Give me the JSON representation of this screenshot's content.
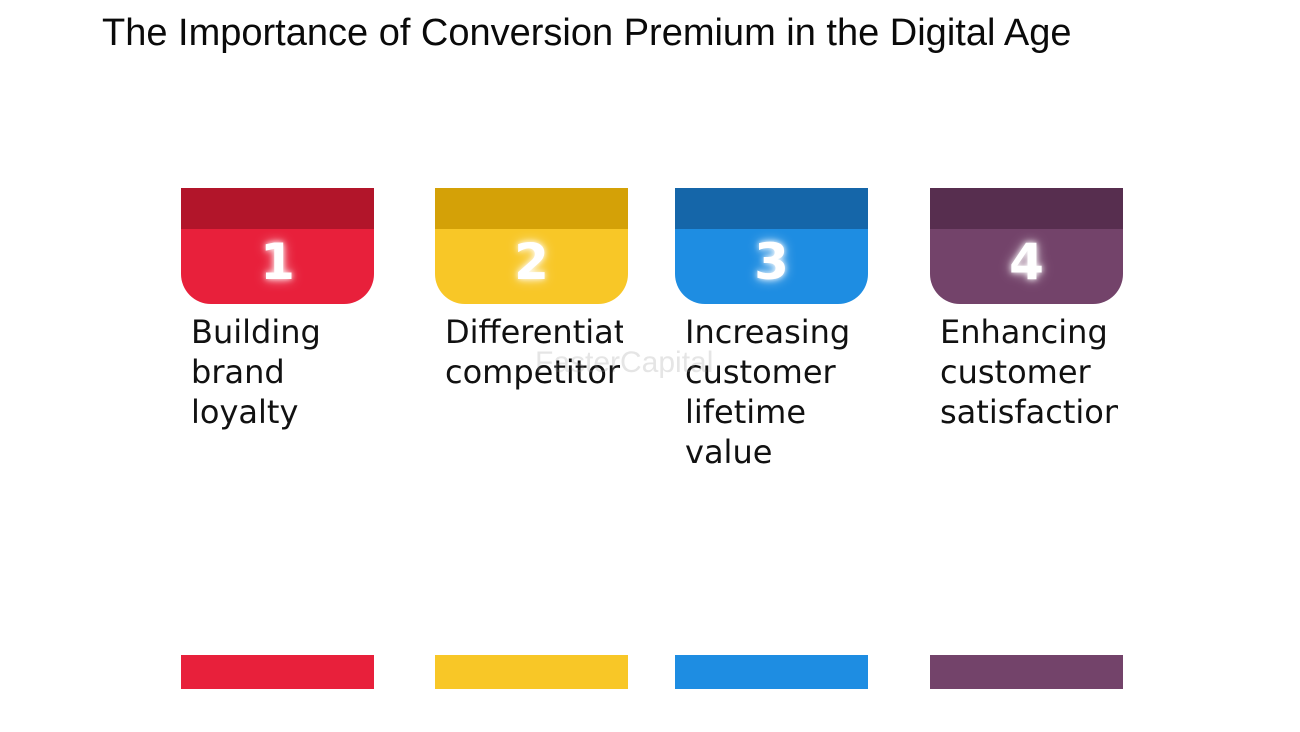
{
  "title": "The Importance of Conversion Premium in the Digital Age",
  "watermark": "FasterCapital",
  "cards": [
    {
      "number": "1",
      "lines": [
        "Building",
        "brand",
        "loyalty"
      ],
      "colors": {
        "top": "#b2152a",
        "tab": "#e8203b",
        "footer": "#e8203b"
      }
    },
    {
      "number": "2",
      "lines": [
        "Differentiat",
        "competitor"
      ],
      "colors": {
        "top": "#d4a107",
        "tab": "#f8c727",
        "footer": "#f8c727"
      }
    },
    {
      "number": "3",
      "lines": [
        "Increasing",
        "customer",
        "lifetime",
        "value"
      ],
      "colors": {
        "top": "#1566a9",
        "tab": "#1e8de2",
        "footer": "#1e8de2"
      }
    },
    {
      "number": "4",
      "lines": [
        "Enhancing",
        "customer",
        "satisfaction"
      ],
      "colors": {
        "top": "#572e4f",
        "tab": "#73436a",
        "footer": "#73436a"
      }
    }
  ]
}
